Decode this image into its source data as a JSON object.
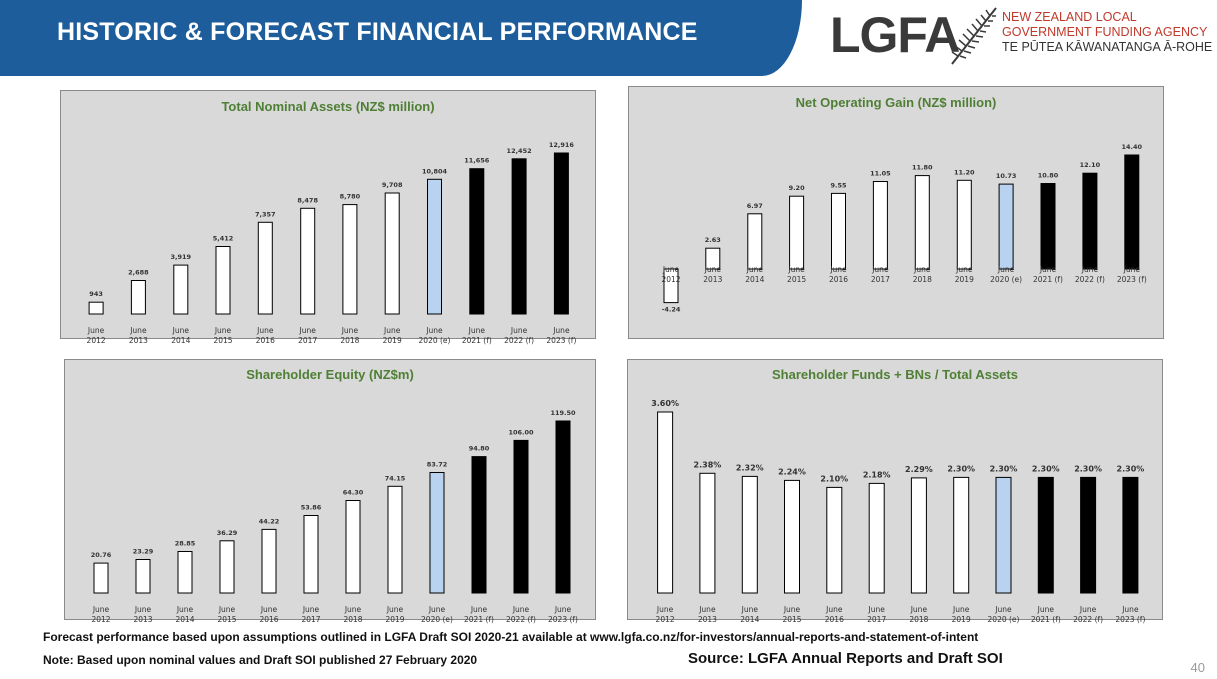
{
  "header": {
    "title": "HISTORIC & FORECAST FINANCIAL PERFORMANCE"
  },
  "logo": {
    "word": "LGFA",
    "line1": "NEW ZEALAND LOCAL",
    "line2": "GOVERNMENT FUNDING AGENCY",
    "line3": "TE PŪTEA KĀWANATANGA Ā-ROHE"
  },
  "colors": {
    "banner": "#1d5d9b",
    "historic": "#ffffff",
    "estimate": "#b9d2ef",
    "forecast": "#000000",
    "title_green": "#4f7f35"
  },
  "chart_data": [
    {
      "type": "bar",
      "title": "Total Nominal Assets (NZ$ million)",
      "categories": [
        "June 2012",
        "June 2013",
        "June 2014",
        "June 2015",
        "June 2016",
        "June 2017",
        "June 2018",
        "June 2019",
        "June 2020 (e)",
        "June 2021 (f)",
        "June 2022 (f)",
        "June 2023 (f)"
      ],
      "values": [
        943,
        2688,
        3919,
        5412,
        7357,
        8478,
        8780,
        9708,
        10804,
        11656,
        12452,
        12916
      ],
      "labels": [
        "943",
        "2,688",
        "3,919",
        "5,412",
        "7,357",
        "8,478",
        "8,780",
        "9,708",
        "10,804",
        "11,656",
        "12,452",
        "12,916"
      ],
      "bar_kinds": [
        "historic",
        "historic",
        "historic",
        "historic",
        "historic",
        "historic",
        "historic",
        "historic",
        "estimate",
        "forecast",
        "forecast",
        "forecast"
      ],
      "ylim": [
        0,
        12916
      ]
    },
    {
      "type": "bar",
      "title": "Net Operating Gain (NZ$ million)",
      "categories": [
        "June 2012",
        "June 2013",
        "June 2014",
        "June 2015",
        "June 2016",
        "June 2017",
        "June 2018",
        "June 2019",
        "June 2020 (e)",
        "June 2021 (f)",
        "June 2022 (f)",
        "June 2023 (f)"
      ],
      "values": [
        -4.24,
        2.63,
        6.97,
        9.2,
        9.55,
        11.05,
        11.8,
        11.2,
        10.73,
        10.8,
        12.1,
        14.4
      ],
      "labels": [
        "-4.24",
        "2.63",
        "6.97",
        "9.20",
        "9.55",
        "11.05",
        "11.80",
        "11.20",
        "10.73",
        "10.80",
        "12.10",
        "14.40"
      ],
      "bar_kinds": [
        "historic",
        "historic",
        "historic",
        "historic",
        "historic",
        "historic",
        "historic",
        "historic",
        "estimate",
        "forecast",
        "forecast",
        "forecast"
      ],
      "ylim": [
        -4.24,
        14.4
      ]
    },
    {
      "type": "bar",
      "title": "Shareholder Equity (NZ$m)",
      "categories": [
        "June 2012",
        "June 2013",
        "June 2014",
        "June 2015",
        "June 2016",
        "June 2017",
        "June 2018",
        "June 2019",
        "June 2020 (e)",
        "June 2021 (f)",
        "June 2022 (f)",
        "June 2023 (f)"
      ],
      "values": [
        20.76,
        23.29,
        28.85,
        36.29,
        44.22,
        53.86,
        64.3,
        74.15,
        83.72,
        94.8,
        106.0,
        119.5
      ],
      "labels": [
        "20.76",
        "23.29",
        "28.85",
        "36.29",
        "44.22",
        "53.86",
        "64.30",
        "74.15",
        "83.72",
        "94.80",
        "106.00",
        "119.50"
      ],
      "bar_kinds": [
        "historic",
        "historic",
        "historic",
        "historic",
        "historic",
        "historic",
        "historic",
        "historic",
        "estimate",
        "forecast",
        "forecast",
        "forecast"
      ],
      "ylim": [
        0,
        119.5
      ]
    },
    {
      "type": "bar",
      "title": "Shareholder Funds + BNs / Total Assets",
      "categories": [
        "June 2012",
        "June 2013",
        "June 2014",
        "June 2015",
        "June 2016",
        "June 2017",
        "June 2018",
        "June 2019",
        "June 2020 (e)",
        "June 2021 (f)",
        "June 2022 (f)",
        "June 2023 (f)"
      ],
      "values": [
        3.6,
        2.38,
        2.32,
        2.24,
        2.1,
        2.18,
        2.29,
        2.3,
        2.3,
        2.3,
        2.3,
        2.3
      ],
      "labels": [
        "3.60%",
        "2.38%",
        "2.32%",
        "2.24%",
        "2.10%",
        "2.18%",
        "2.29%",
        "2.30%",
        "2.30%",
        "2.30%",
        "2.30%",
        "2.30%"
      ],
      "bar_kinds": [
        "historic",
        "historic",
        "historic",
        "historic",
        "historic",
        "historic",
        "historic",
        "historic",
        "estimate",
        "forecast",
        "forecast",
        "forecast"
      ],
      "ylim": [
        0,
        3.6
      ]
    }
  ],
  "footer": {
    "note1": "Forecast performance based upon assumptions outlined in LGFA Draft SOI 2020-21 available at www.lgfa.co.nz/for-investors/annual-reports-and-statement-of-intent",
    "note2": "Note: Based upon nominal values and Draft SOI published 27 February 2020",
    "source": "Source: LGFA Annual Reports and Draft SOI",
    "page": "40"
  }
}
